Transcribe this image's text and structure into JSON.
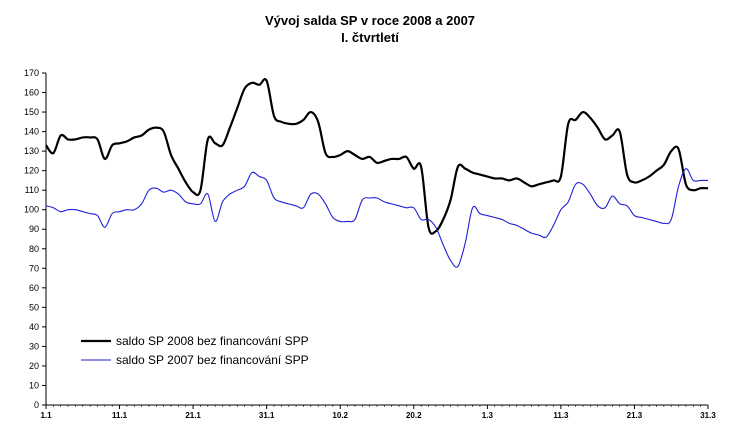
{
  "chart_data": {
    "type": "line",
    "title_line1": "Vývoj salda SP v roce 2008 a 2007",
    "title_line2": "I. čtvrtletí",
    "xlabel": "",
    "ylabel": "",
    "ylim": [
      0,
      170
    ],
    "yticks": [
      0,
      10,
      20,
      30,
      40,
      50,
      60,
      70,
      80,
      90,
      100,
      110,
      120,
      130,
      140,
      150,
      160,
      170
    ],
    "xlim": [
      0,
      90
    ],
    "xticks": [
      {
        "x": 0,
        "label": "1.1"
      },
      {
        "x": 10,
        "label": "11.1"
      },
      {
        "x": 20,
        "label": "21.1"
      },
      {
        "x": 30,
        "label": "31.1"
      },
      {
        "x": 40,
        "label": "10.2"
      },
      {
        "x": 50,
        "label": "20.2"
      },
      {
        "x": 60,
        "label": "1.3"
      },
      {
        "x": 70,
        "label": "11.3"
      },
      {
        "x": 80,
        "label": "21.3"
      },
      {
        "x": 90,
        "label": "31.3"
      }
    ],
    "grid": false,
    "legend_position": "bottom-left",
    "series": [
      {
        "name": "saldo SP 2008 bez financování SPP",
        "color": "#000000",
        "points": [
          [
            0,
            133
          ],
          [
            1,
            129
          ],
          [
            2,
            138
          ],
          [
            3,
            136
          ],
          [
            4,
            136
          ],
          [
            5,
            137
          ],
          [
            6,
            137
          ],
          [
            7,
            136
          ],
          [
            8,
            126
          ],
          [
            9,
            133
          ],
          [
            10,
            134
          ],
          [
            11,
            135
          ],
          [
            12,
            137
          ],
          [
            13,
            138
          ],
          [
            14,
            141
          ],
          [
            15,
            142
          ],
          [
            16,
            140
          ],
          [
            17,
            128
          ],
          [
            18,
            121
          ],
          [
            19,
            114
          ],
          [
            20,
            109
          ],
          [
            21,
            110
          ],
          [
            22,
            136
          ],
          [
            23,
            134
          ],
          [
            24,
            133
          ],
          [
            25,
            142
          ],
          [
            26,
            152
          ],
          [
            27,
            162
          ],
          [
            28,
            165
          ],
          [
            29,
            164
          ],
          [
            30,
            166
          ],
          [
            31,
            148
          ],
          [
            32,
            145
          ],
          [
            33,
            144
          ],
          [
            34,
            144
          ],
          [
            35,
            146
          ],
          [
            36,
            150
          ],
          [
            37,
            145
          ],
          [
            38,
            129
          ],
          [
            39,
            127
          ],
          [
            40,
            128
          ],
          [
            41,
            130
          ],
          [
            42,
            128
          ],
          [
            43,
            126
          ],
          [
            44,
            127
          ],
          [
            45,
            124
          ],
          [
            46,
            125
          ],
          [
            47,
            126
          ],
          [
            48,
            126
          ],
          [
            49,
            127
          ],
          [
            50,
            121
          ],
          [
            51,
            122
          ],
          [
            52,
            91
          ],
          [
            53,
            89
          ],
          [
            54,
            95
          ],
          [
            55,
            105
          ],
          [
            56,
            122
          ],
          [
            57,
            121
          ],
          [
            58,
            119
          ],
          [
            59,
            118
          ],
          [
            60,
            117
          ],
          [
            61,
            116
          ],
          [
            62,
            116
          ],
          [
            63,
            115
          ],
          [
            64,
            116
          ],
          [
            65,
            114
          ],
          [
            66,
            112
          ],
          [
            67,
            113
          ],
          [
            68,
            114
          ],
          [
            69,
            115
          ],
          [
            70,
            117
          ],
          [
            71,
            144
          ],
          [
            72,
            146
          ],
          [
            73,
            150
          ],
          [
            74,
            147
          ],
          [
            75,
            142
          ],
          [
            76,
            136
          ],
          [
            77,
            138
          ],
          [
            78,
            140
          ],
          [
            79,
            118
          ],
          [
            80,
            114
          ],
          [
            81,
            115
          ],
          [
            82,
            117
          ],
          [
            83,
            120
          ],
          [
            84,
            123
          ],
          [
            85,
            130
          ],
          [
            86,
            131
          ],
          [
            87,
            113
          ],
          [
            88,
            110
          ],
          [
            89,
            111
          ],
          [
            90,
            111
          ]
        ]
      },
      {
        "name": "saldo SP 2007 bez financování SPP",
        "color": "#1f1fd6",
        "points": [
          [
            0,
            102
          ],
          [
            1,
            101
          ],
          [
            2,
            99
          ],
          [
            3,
            100
          ],
          [
            4,
            100
          ],
          [
            5,
            99
          ],
          [
            6,
            98
          ],
          [
            7,
            97
          ],
          [
            8,
            91
          ],
          [
            9,
            98
          ],
          [
            10,
            99
          ],
          [
            11,
            100
          ],
          [
            12,
            100
          ],
          [
            13,
            103
          ],
          [
            14,
            110
          ],
          [
            15,
            111
          ],
          [
            16,
            109
          ],
          [
            17,
            110
          ],
          [
            18,
            108
          ],
          [
            19,
            104
          ],
          [
            20,
            103
          ],
          [
            21,
            103
          ],
          [
            22,
            108
          ],
          [
            23,
            94
          ],
          [
            24,
            104
          ],
          [
            25,
            108
          ],
          [
            26,
            110
          ],
          [
            27,
            112
          ],
          [
            28,
            119
          ],
          [
            29,
            117
          ],
          [
            30,
            115
          ],
          [
            31,
            106
          ],
          [
            32,
            104
          ],
          [
            33,
            103
          ],
          [
            34,
            102
          ],
          [
            35,
            101
          ],
          [
            36,
            108
          ],
          [
            37,
            108
          ],
          [
            38,
            103
          ],
          [
            39,
            96
          ],
          [
            40,
            94
          ],
          [
            41,
            94
          ],
          [
            42,
            95
          ],
          [
            43,
            105
          ],
          [
            44,
            106
          ],
          [
            45,
            106
          ],
          [
            46,
            104
          ],
          [
            47,
            103
          ],
          [
            48,
            102
          ],
          [
            49,
            101
          ],
          [
            50,
            101
          ],
          [
            51,
            95
          ],
          [
            52,
            95
          ],
          [
            53,
            91
          ],
          [
            54,
            82
          ],
          [
            55,
            74
          ],
          [
            56,
            71
          ],
          [
            57,
            83
          ],
          [
            58,
            101
          ],
          [
            59,
            98
          ],
          [
            60,
            97
          ],
          [
            61,
            96
          ],
          [
            62,
            95
          ],
          [
            63,
            93
          ],
          [
            64,
            92
          ],
          [
            65,
            90
          ],
          [
            66,
            88
          ],
          [
            67,
            87
          ],
          [
            68,
            86
          ],
          [
            69,
            92
          ],
          [
            70,
            100
          ],
          [
            71,
            104
          ],
          [
            72,
            113
          ],
          [
            73,
            113
          ],
          [
            74,
            108
          ],
          [
            75,
            102
          ],
          [
            76,
            101
          ],
          [
            77,
            107
          ],
          [
            78,
            103
          ],
          [
            79,
            102
          ],
          [
            80,
            97
          ],
          [
            81,
            96
          ],
          [
            82,
            95
          ],
          [
            83,
            94
          ],
          [
            84,
            93
          ],
          [
            85,
            95
          ],
          [
            86,
            112
          ],
          [
            87,
            121
          ],
          [
            88,
            115
          ],
          [
            89,
            115
          ],
          [
            90,
            115
          ]
        ]
      }
    ]
  }
}
